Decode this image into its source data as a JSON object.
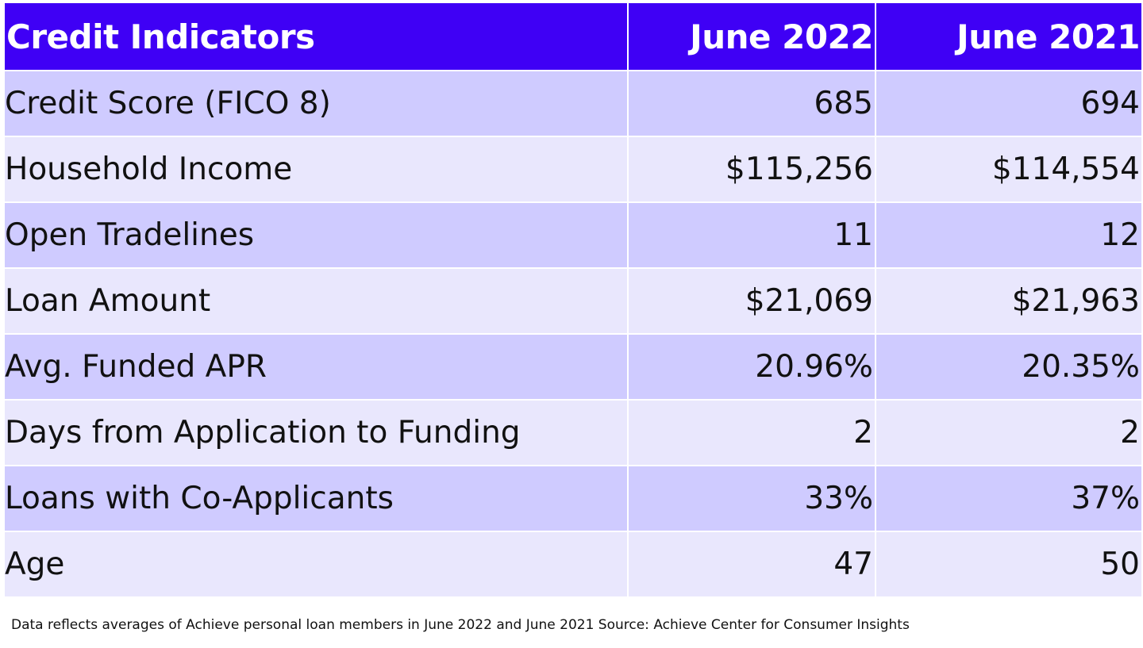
{
  "table": {
    "headers": [
      "Credit Indicators",
      "June 2022",
      "June 2021"
    ],
    "rows": [
      {
        "label": "Credit Score (FICO 8)",
        "june_2022": "685",
        "june_2021": "694"
      },
      {
        "label": "Household Income",
        "june_2022": "$115,256",
        "june_2021": "$114,554"
      },
      {
        "label": "Open Tradelines",
        "june_2022": "11",
        "june_2021": "12"
      },
      {
        "label": "Loan Amount",
        "june_2022": "$21,069",
        "june_2021": "$21,963"
      },
      {
        "label": "Avg. Funded APR",
        "june_2022": "20.96%",
        "june_2021": "20.35%"
      },
      {
        "label": "Days from Application to Funding",
        "june_2022": "2",
        "june_2021": "2"
      },
      {
        "label": "Loans with Co-Applicants",
        "june_2022": "33%",
        "june_2021": "37%"
      },
      {
        "label": "Age",
        "june_2022": "47",
        "june_2021": "50"
      }
    ]
  },
  "footnote": "Data reflects averages of Achieve personal loan members in June 2022 and June 2021 Source: Achieve Center for Consumer Insights",
  "colors": {
    "header_bg": "#3f00f5",
    "header_text": "#ffffff",
    "row_odd_bg": "#cfcbff",
    "row_even_bg": "#e9e7fd"
  }
}
